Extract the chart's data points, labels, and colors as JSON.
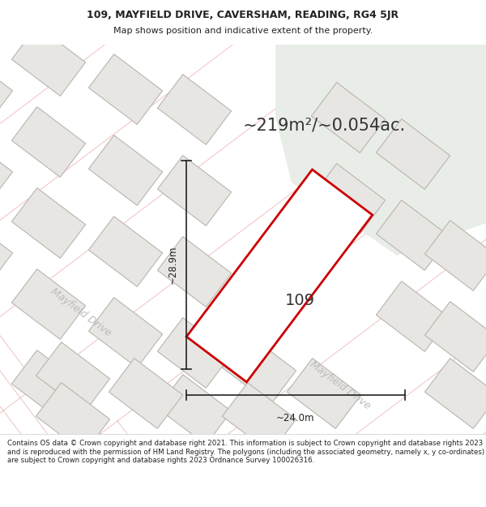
{
  "title_line1": "109, MAYFIELD DRIVE, CAVERSHAM, READING, RG4 5JR",
  "title_line2": "Map shows position and indicative extent of the property.",
  "area_text": "~219m²/~0.054ac.",
  "label_109": "109",
  "label_width": "~24.0m",
  "label_height": "~28.9m",
  "road_label_upper": "Mayfield Drive",
  "road_label_lower": "Mayfield Drive",
  "footer_text": "Contains OS data © Crown copyright and database right 2021. This information is subject to Crown copyright and database rights 2023 and is reproduced with the permission of HM Land Registry. The polygons (including the associated geometry, namely x, y co-ordinates) are subject to Crown copyright and database rights 2023 Ordnance Survey 100026316.",
  "map_bg": "#f7f6f4",
  "building_fill": "#e8e6e3",
  "building_outline": "#b8b5b0",
  "highlight_fill": "#ffffff",
  "highlight_outline": "#cc0000",
  "green_area": "#e8ede8",
  "cadastral_color": "#e8a8a8",
  "dim_color": "#222222",
  "text_color": "#333333",
  "title_color": "#222222",
  "footer_color": "#222222",
  "road_fill": "#f0ede8",
  "road_label_color": "#bbbbbb",
  "title_fontsize": 9.0,
  "subtitle_fontsize": 8.0,
  "area_fontsize": 15,
  "label109_fontsize": 14,
  "dim_fontsize": 8.5,
  "road_fontsize": 9,
  "footer_fontsize": 6.2
}
